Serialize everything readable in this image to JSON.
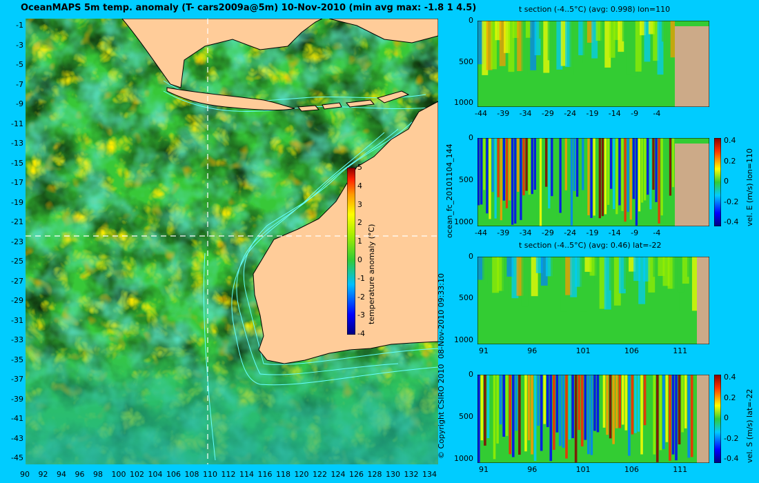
{
  "title": "OceanMAPS 5m temp. anomaly (T- cars2009a@5m) 10-Nov-2010 (min avg max: -1.8 1 4.5)",
  "map": {
    "lat_ticks": [
      "-1",
      "-3",
      "-5",
      "-7",
      "-9",
      "-11",
      "-13",
      "-15",
      "-17",
      "-19",
      "-21",
      "-23",
      "-25",
      "-27",
      "-29",
      "-31",
      "-33",
      "-35",
      "-37",
      "-39",
      "-41",
      "-43",
      "-45"
    ],
    "lon_ticks": [
      "90",
      "92",
      "94",
      "96",
      "98",
      "100",
      "102",
      "104",
      "106",
      "108",
      "110",
      "112",
      "114",
      "116",
      "118",
      "120",
      "122",
      "124",
      "126",
      "128",
      "130",
      "132",
      "134"
    ],
    "colorbar": {
      "ticks": [
        "5",
        "4",
        "3",
        "2",
        "1",
        "0",
        "-1",
        "-2",
        "-3",
        "-4"
      ],
      "label": "temperature anomaly (°C)"
    },
    "colors": {
      "ocean_mid": "#33cc33",
      "land": "#ffcc99",
      "coast": "#000000",
      "contour": "#66ffff",
      "bg": "#00ccff"
    }
  },
  "panels": [
    {
      "title": "t section (-4..5°C) (avg: 0.998) lon=110",
      "y_ticks": [
        "0",
        "500",
        "1000"
      ],
      "x_ticks": [
        "-44",
        "-39",
        "-34",
        "-29",
        "-24",
        "-19",
        "-14",
        "-9",
        "-4"
      ]
    },
    {
      "title": "",
      "y_ticks": [
        "0",
        "500",
        "1000"
      ],
      "x_ticks": [
        "-44",
        "-39",
        "-34",
        "-29",
        "-24",
        "-19",
        "-14",
        "-9",
        "-4"
      ],
      "cbar_ticks": [
        "0.4",
        "0.2",
        "0",
        "-0.2",
        "-0.4"
      ],
      "cbar_label": "vel. E (m/s) lon=110"
    },
    {
      "title": "t section (-4..5°C) (avg: 0.46) lat=-22",
      "y_ticks": [
        "0",
        "500",
        "1000"
      ],
      "x_ticks": [
        "91",
        "96",
        "101",
        "106",
        "111"
      ]
    },
    {
      "title": "",
      "y_ticks": [
        "0",
        "500",
        "1000"
      ],
      "x_ticks": [
        "91",
        "96",
        "101",
        "106",
        "111"
      ],
      "cbar_ticks": [
        "0.4",
        "0.2",
        "0",
        "-0.2",
        "-0.4"
      ],
      "cbar_label": "vel. S (m/s) lat=-22"
    }
  ],
  "side_labels": {
    "run": "ocean_fc_20101104_144",
    "date": "08-Nov-2010 09:33:10",
    "copyright": "© Copyright CSIRO 2010"
  }
}
